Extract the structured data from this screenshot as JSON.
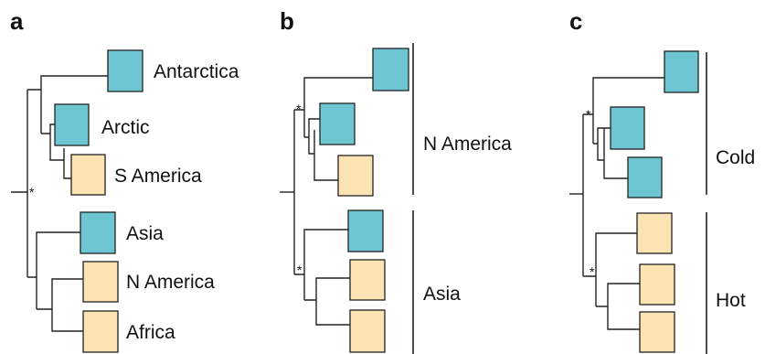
{
  "colors": {
    "cold": "#6ec6d3",
    "warm": "#fbe3b3"
  },
  "panels": {
    "a": {
      "label": "a",
      "star": "*",
      "leaves": [
        {
          "label": "Antarctica",
          "color": "cold"
        },
        {
          "label": "Arctic",
          "color": "cold"
        },
        {
          "label": "S America",
          "color": "warm"
        },
        {
          "label": "Asia",
          "color": "cold"
        },
        {
          "label": "N America",
          "color": "warm"
        },
        {
          "label": "Africa",
          "color": "warm"
        }
      ]
    },
    "b": {
      "label": "b",
      "star": "*",
      "leaves": [
        {
          "color": "cold"
        },
        {
          "color": "cold"
        },
        {
          "color": "warm"
        },
        {
          "color": "cold"
        },
        {
          "color": "warm"
        },
        {
          "color": "warm"
        }
      ],
      "groups": [
        "N America",
        "Asia"
      ]
    },
    "c": {
      "label": "c",
      "star": "*",
      "leaves": [
        {
          "color": "cold"
        },
        {
          "color": "cold"
        },
        {
          "color": "cold"
        },
        {
          "color": "warm"
        },
        {
          "color": "warm"
        },
        {
          "color": "warm"
        }
      ],
      "groups": [
        "Cold",
        "Hot"
      ]
    }
  }
}
